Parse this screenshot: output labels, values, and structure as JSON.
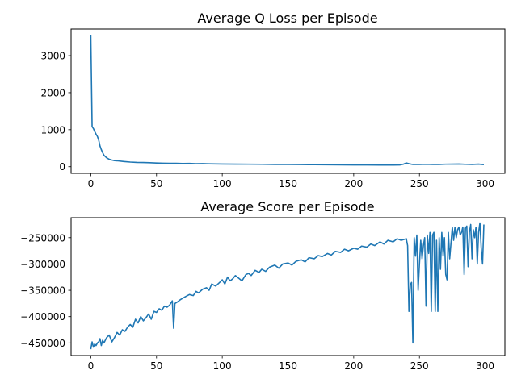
{
  "chart_data": [
    {
      "type": "line",
      "title": "Average Q Loss per Episode",
      "xlabel": "",
      "ylabel": "",
      "xlim": [
        -15,
        315
      ],
      "ylim": [
        -180,
        3720
      ],
      "xticks": [
        0,
        50,
        100,
        150,
        200,
        250,
        300
      ],
      "yticks": [
        0,
        1000,
        2000,
        3000
      ],
      "grid": false,
      "legend": "none",
      "color": "#1f77b4",
      "series": [
        {
          "name": "",
          "x": [
            0,
            1,
            2,
            3,
            4,
            5,
            6,
            7,
            8,
            9,
            10,
            12,
            14,
            16,
            18,
            20,
            25,
            30,
            35,
            40,
            45,
            50,
            55,
            60,
            65,
            70,
            75,
            80,
            85,
            90,
            95,
            100,
            110,
            120,
            130,
            140,
            150,
            160,
            170,
            180,
            190,
            200,
            210,
            220,
            230,
            235,
            238,
            240,
            242,
            245,
            250,
            255,
            260,
            265,
            270,
            275,
            280,
            285,
            290,
            295,
            299
          ],
          "y": [
            3550,
            1080,
            1030,
            950,
            880,
            820,
            720,
            560,
            460,
            380,
            310,
            240,
            200,
            180,
            165,
            160,
            140,
            125,
            115,
            112,
            108,
            100,
            95,
            92,
            90,
            85,
            88,
            80,
            82,
            78,
            75,
            72,
            70,
            68,
            65,
            62,
            60,
            58,
            55,
            52,
            50,
            48,
            48,
            45,
            45,
            48,
            70,
            100,
            80,
            60,
            62,
            65,
            60,
            62,
            68,
            70,
            72,
            65,
            60,
            70,
            55
          ]
        }
      ]
    },
    {
      "type": "line",
      "title": "Average Score per Episode",
      "xlabel": "",
      "ylabel": "",
      "xlim": [
        -15,
        315
      ],
      "ylim": [
        -474000,
        -212000
      ],
      "xticks": [
        0,
        50,
        100,
        150,
        200,
        250,
        300
      ],
      "yticks": [
        -450000,
        -400000,
        -350000,
        -300000,
        -250000
      ],
      "grid": false,
      "legend": "none",
      "color": "#1f77b4",
      "series": [
        {
          "name": "",
          "x": [
            0,
            1,
            2,
            3,
            4,
            5,
            6,
            7,
            8,
            9,
            10,
            12,
            14,
            16,
            18,
            20,
            22,
            24,
            26,
            28,
            30,
            32,
            34,
            36,
            38,
            40,
            42,
            44,
            46,
            48,
            50,
            52,
            54,
            56,
            58,
            60,
            62,
            63,
            64,
            66,
            68,
            70,
            72,
            75,
            78,
            80,
            82,
            85,
            88,
            90,
            92,
            95,
            98,
            100,
            102,
            104,
            106,
            108,
            110,
            112,
            115,
            118,
            120,
            122,
            125,
            128,
            130,
            133,
            136,
            140,
            143,
            146,
            150,
            153,
            156,
            160,
            163,
            166,
            170,
            173,
            176,
            180,
            183,
            186,
            190,
            193,
            196,
            200,
            203,
            206,
            210,
            213,
            216,
            220,
            223,
            226,
            230,
            233,
            236,
            240,
            241,
            242,
            243,
            244,
            245,
            246,
            247,
            248,
            249,
            250,
            251,
            252,
            253,
            254,
            255,
            256,
            257,
            258,
            259,
            260,
            261,
            262,
            263,
            264,
            265,
            266,
            267,
            268,
            269,
            270,
            271,
            272,
            273,
            274,
            275,
            276,
            277,
            278,
            279,
            280,
            281,
            282,
            283,
            284,
            285,
            286,
            287,
            288,
            289,
            290,
            291,
            292,
            293,
            294,
            295,
            296,
            297,
            298,
            299
          ],
          "y": [
            -462000,
            -448000,
            -458000,
            -452000,
            -455000,
            -450000,
            -448000,
            -442000,
            -455000,
            -445000,
            -450000,
            -440000,
            -435000,
            -448000,
            -440000,
            -430000,
            -435000,
            -425000,
            -428000,
            -420000,
            -415000,
            -420000,
            -405000,
            -412000,
            -400000,
            -408000,
            -402000,
            -395000,
            -405000,
            -390000,
            -392000,
            -385000,
            -388000,
            -380000,
            -382000,
            -378000,
            -370000,
            -422000,
            -375000,
            -372000,
            -368000,
            -365000,
            -362000,
            -358000,
            -360000,
            -352000,
            -355000,
            -348000,
            -345000,
            -350000,
            -338000,
            -342000,
            -335000,
            -330000,
            -338000,
            -325000,
            -332000,
            -328000,
            -322000,
            -326000,
            -332000,
            -320000,
            -318000,
            -322000,
            -312000,
            -316000,
            -310000,
            -314000,
            -306000,
            -302000,
            -308000,
            -300000,
            -298000,
            -302000,
            -295000,
            -292000,
            -296000,
            -288000,
            -290000,
            -284000,
            -286000,
            -280000,
            -283000,
            -276000,
            -278000,
            -272000,
            -275000,
            -270000,
            -272000,
            -266000,
            -268000,
            -262000,
            -265000,
            -258000,
            -262000,
            -255000,
            -258000,
            -252000,
            -255000,
            -252000,
            -265000,
            -390000,
            -340000,
            -335000,
            -450000,
            -250000,
            -285000,
            -245000,
            -350000,
            -300000,
            -255000,
            -290000,
            -265000,
            -250000,
            -380000,
            -245000,
            -280000,
            -240000,
            -390000,
            -245000,
            -240000,
            -390000,
            -255000,
            -390000,
            -250000,
            -310000,
            -240000,
            -285000,
            -250000,
            -320000,
            -330000,
            -240000,
            -290000,
            -260000,
            -230000,
            -255000,
            -230000,
            -250000,
            -235000,
            -230000,
            -245000,
            -240000,
            -230000,
            -320000,
            -232000,
            -228000,
            -305000,
            -240000,
            -225000,
            -290000,
            -235000,
            -250000,
            -230000,
            -300000,
            -240000,
            -222000,
            -270000,
            -300000,
            -225000
          ]
        }
      ]
    }
  ]
}
